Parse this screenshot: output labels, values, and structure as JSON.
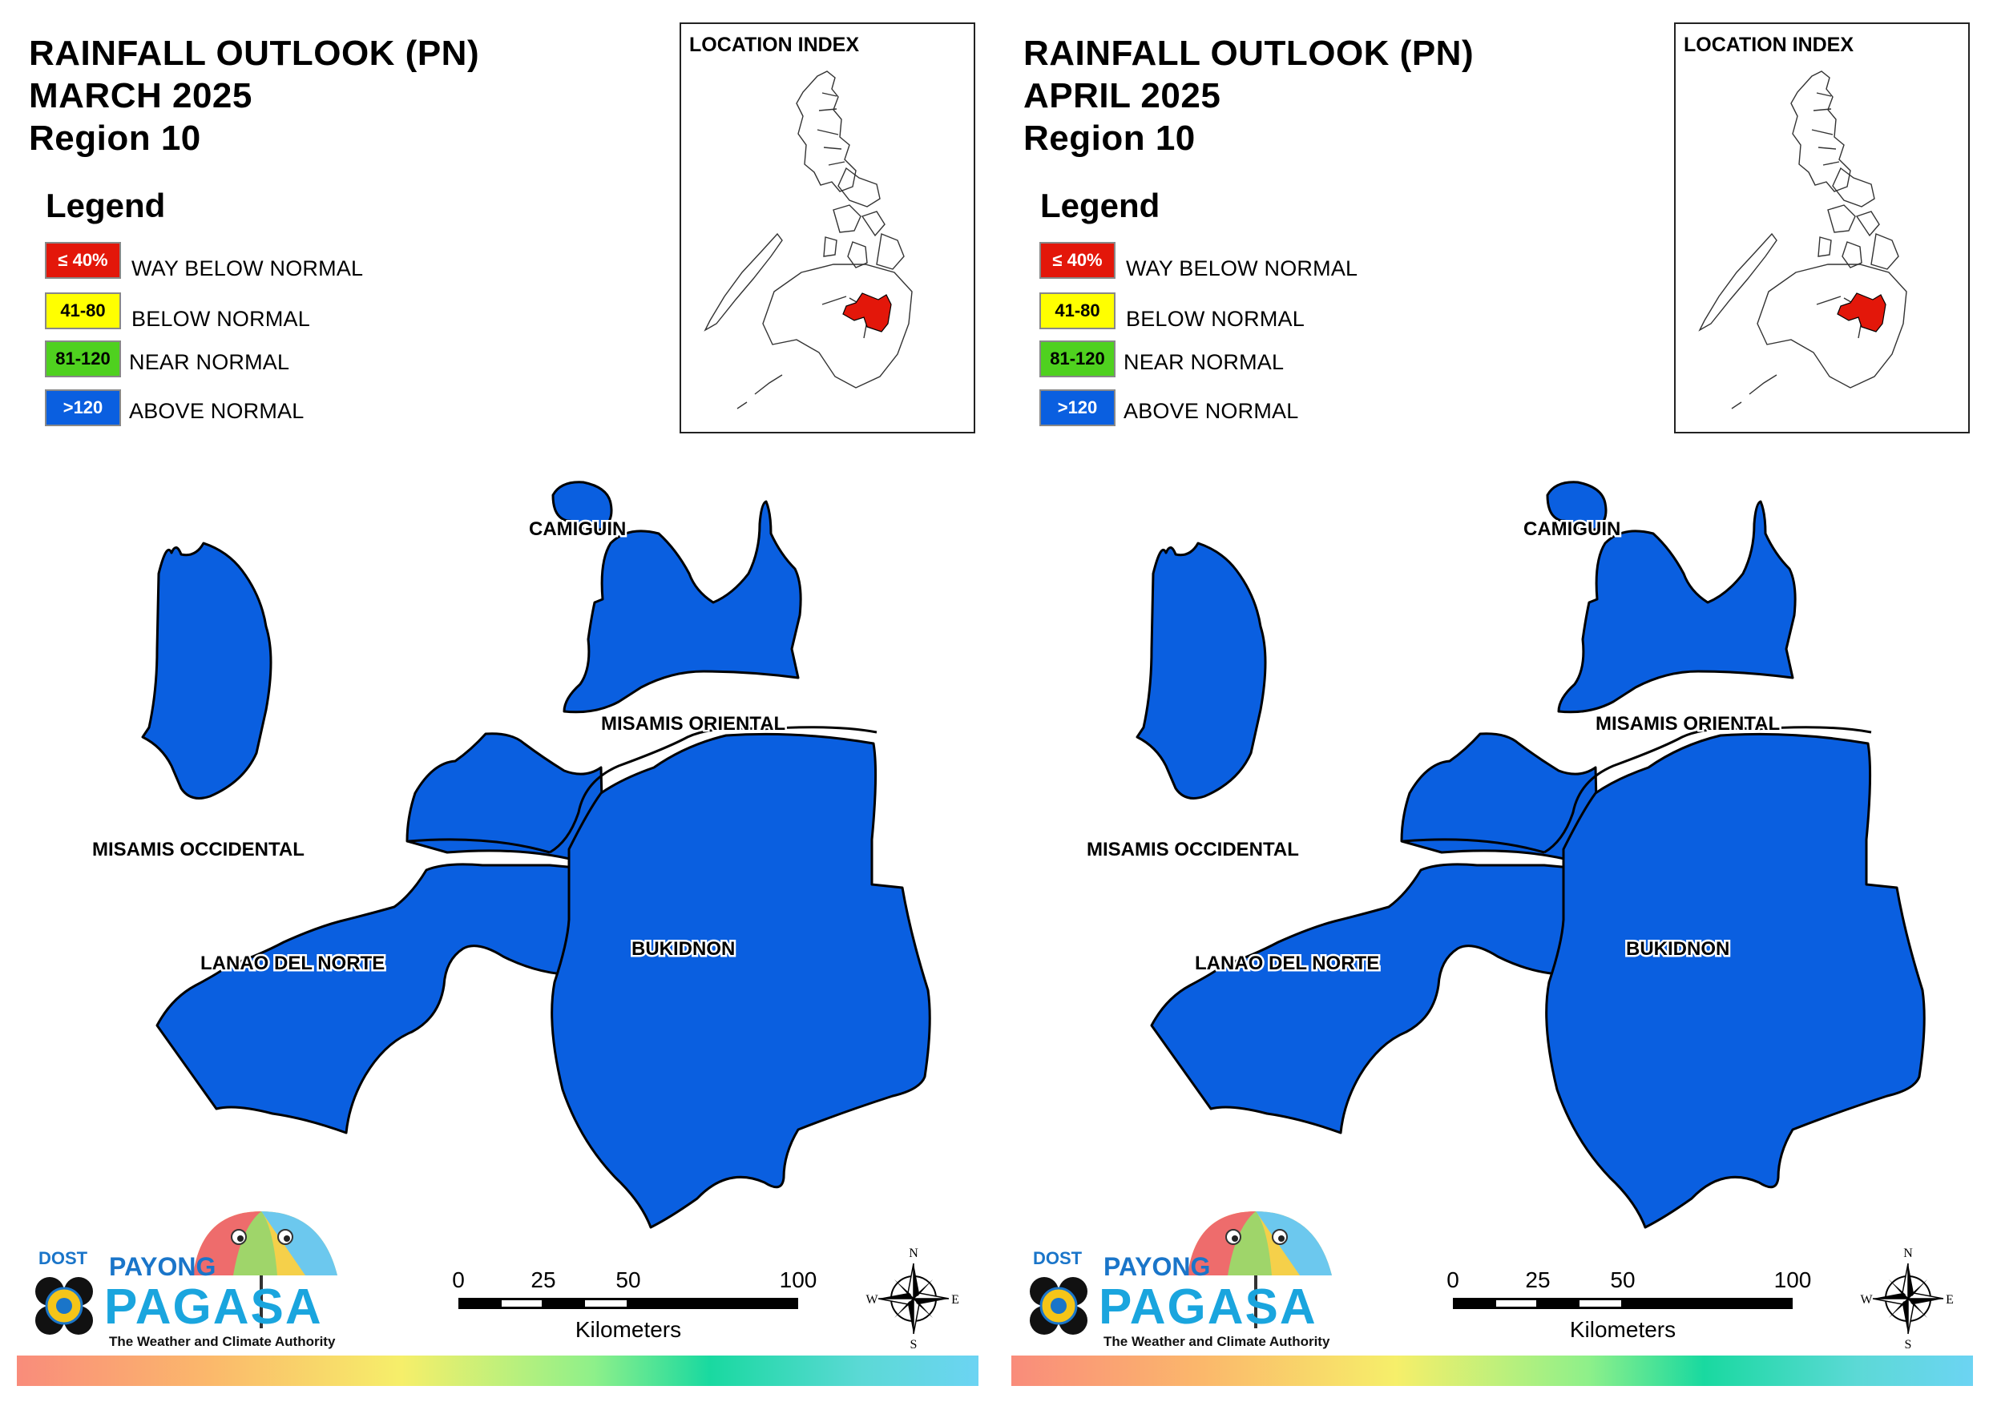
{
  "panels": [
    {
      "title_line1": "RAINFALL OUTLOOK (PN)",
      "title_line2": "MARCH 2025",
      "title_line3": "Region 10",
      "legend_title": "Legend",
      "legend": [
        {
          "swatch": "≤ 40%",
          "label": "WAY BELOW NORMAL",
          "color": "#e3170a",
          "text_color": "#ffffff"
        },
        {
          "swatch": "41-80",
          "label": "BELOW NORMAL",
          "color": "#ffff00",
          "text_color": "#000000"
        },
        {
          "swatch": "81-120",
          "label": "NEAR NORMAL",
          "color": "#4fd11f",
          "text_color": "#000000"
        },
        {
          "swatch": ">120",
          "label": "ABOVE NORMAL",
          "color": "#0a5fe0",
          "text_color": "#ffffff"
        }
      ],
      "location_index_label": "LOCATION INDEX",
      "provinces": [
        {
          "name": "CAMIGUIN",
          "category": "ABOVE NORMAL"
        },
        {
          "name": "MISAMIS ORIENTAL",
          "category": "ABOVE NORMAL"
        },
        {
          "name": "MISAMIS OCCIDENTAL",
          "category": "ABOVE NORMAL"
        },
        {
          "name": "LANAO DEL NORTE",
          "category": "ABOVE NORMAL"
        },
        {
          "name": "BUKIDNON",
          "category": "ABOVE NORMAL"
        }
      ],
      "scale": {
        "ticks": [
          "0",
          "25",
          "50",
          "100"
        ],
        "unit": "Kilometers"
      },
      "compass": {
        "n": "N",
        "e": "E",
        "s": "S",
        "w": "W"
      },
      "logo": {
        "dost": "DOST",
        "payong": "PAYONG",
        "pagasa": "PAGASA",
        "tagline": "The Weather and Climate Authority"
      }
    },
    {
      "title_line1": "RAINFALL OUTLOOK (PN)",
      "title_line2": "APRIL 2025",
      "title_line3": "Region 10",
      "legend_title": "Legend",
      "legend": [
        {
          "swatch": "≤ 40%",
          "label": "WAY BELOW NORMAL",
          "color": "#e3170a",
          "text_color": "#ffffff"
        },
        {
          "swatch": "41-80",
          "label": "BELOW NORMAL",
          "color": "#ffff00",
          "text_color": "#000000"
        },
        {
          "swatch": "81-120",
          "label": "NEAR NORMAL",
          "color": "#4fd11f",
          "text_color": "#000000"
        },
        {
          "swatch": ">120",
          "label": "ABOVE NORMAL",
          "color": "#0a5fe0",
          "text_color": "#ffffff"
        }
      ],
      "location_index_label": "LOCATION INDEX",
      "provinces": [
        {
          "name": "CAMIGUIN",
          "category": "ABOVE NORMAL"
        },
        {
          "name": "MISAMIS ORIENTAL",
          "category": "ABOVE NORMAL"
        },
        {
          "name": "MISAMIS OCCIDENTAL",
          "category": "ABOVE NORMAL"
        },
        {
          "name": "LANAO DEL NORTE",
          "category": "ABOVE NORMAL"
        },
        {
          "name": "BUKIDNON",
          "category": "ABOVE NORMAL"
        }
      ],
      "scale": {
        "ticks": [
          "0",
          "25",
          "50",
          "100"
        ],
        "unit": "Kilometers"
      },
      "compass": {
        "n": "N",
        "e": "E",
        "s": "S",
        "w": "W"
      },
      "logo": {
        "dost": "DOST",
        "payong": "PAYONG",
        "pagasa": "PAGASA",
        "tagline": "The Weather and Climate Authority"
      }
    }
  ],
  "colors": {
    "province_fill": "#0a5fe0",
    "highlight_region": "#e3170a"
  }
}
